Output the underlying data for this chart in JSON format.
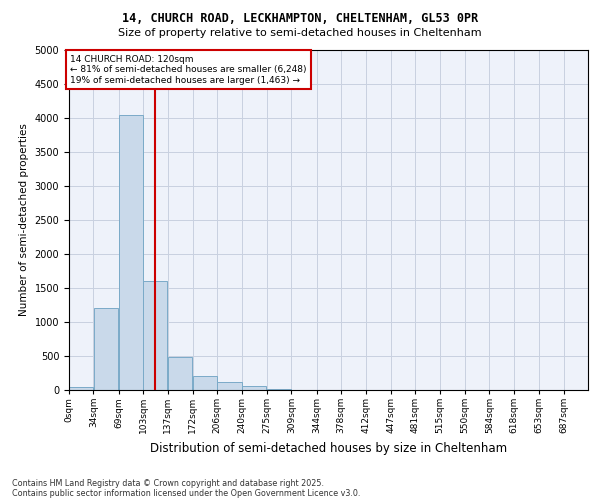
{
  "title_line1": "14, CHURCH ROAD, LECKHAMPTON, CHELTENHAM, GL53 0PR",
  "title_line2": "Size of property relative to semi-detached houses in Cheltenham",
  "xlabel": "Distribution of semi-detached houses by size in Cheltenham",
  "ylabel": "Number of semi-detached properties",
  "bins": [
    "0sqm",
    "34sqm",
    "69sqm",
    "103sqm",
    "137sqm",
    "172sqm",
    "206sqm",
    "240sqm",
    "275sqm",
    "309sqm",
    "344sqm",
    "378sqm",
    "412sqm",
    "447sqm",
    "481sqm",
    "515sqm",
    "550sqm",
    "584sqm",
    "618sqm",
    "653sqm",
    "687sqm"
  ],
  "bin_edges": [
    0,
    34,
    69,
    103,
    137,
    172,
    206,
    240,
    275,
    309,
    344,
    378,
    412,
    447,
    481,
    515,
    550,
    584,
    618,
    653,
    687
  ],
  "values": [
    50,
    1200,
    4050,
    1600,
    480,
    200,
    120,
    55,
    20,
    0,
    0,
    0,
    0,
    0,
    0,
    0,
    0,
    0,
    0,
    0
  ],
  "bar_color": "#c9d9ea",
  "bar_edge_color": "#7aaac8",
  "grid_color": "#c8d0e0",
  "bg_color": "#eef2fa",
  "vline_x": 120,
  "vline_color": "#cc0000",
  "annotation_title": "14 CHURCH ROAD: 120sqm",
  "annotation_line1": "← 81% of semi-detached houses are smaller (6,248)",
  "annotation_line2": "19% of semi-detached houses are larger (1,463) →",
  "annotation_box_color": "#cc0000",
  "footnote1": "Contains HM Land Registry data © Crown copyright and database right 2025.",
  "footnote2": "Contains public sector information licensed under the Open Government Licence v3.0.",
  "ylim": [
    0,
    5000
  ],
  "yticks": [
    0,
    500,
    1000,
    1500,
    2000,
    2500,
    3000,
    3500,
    4000,
    4500,
    5000
  ]
}
